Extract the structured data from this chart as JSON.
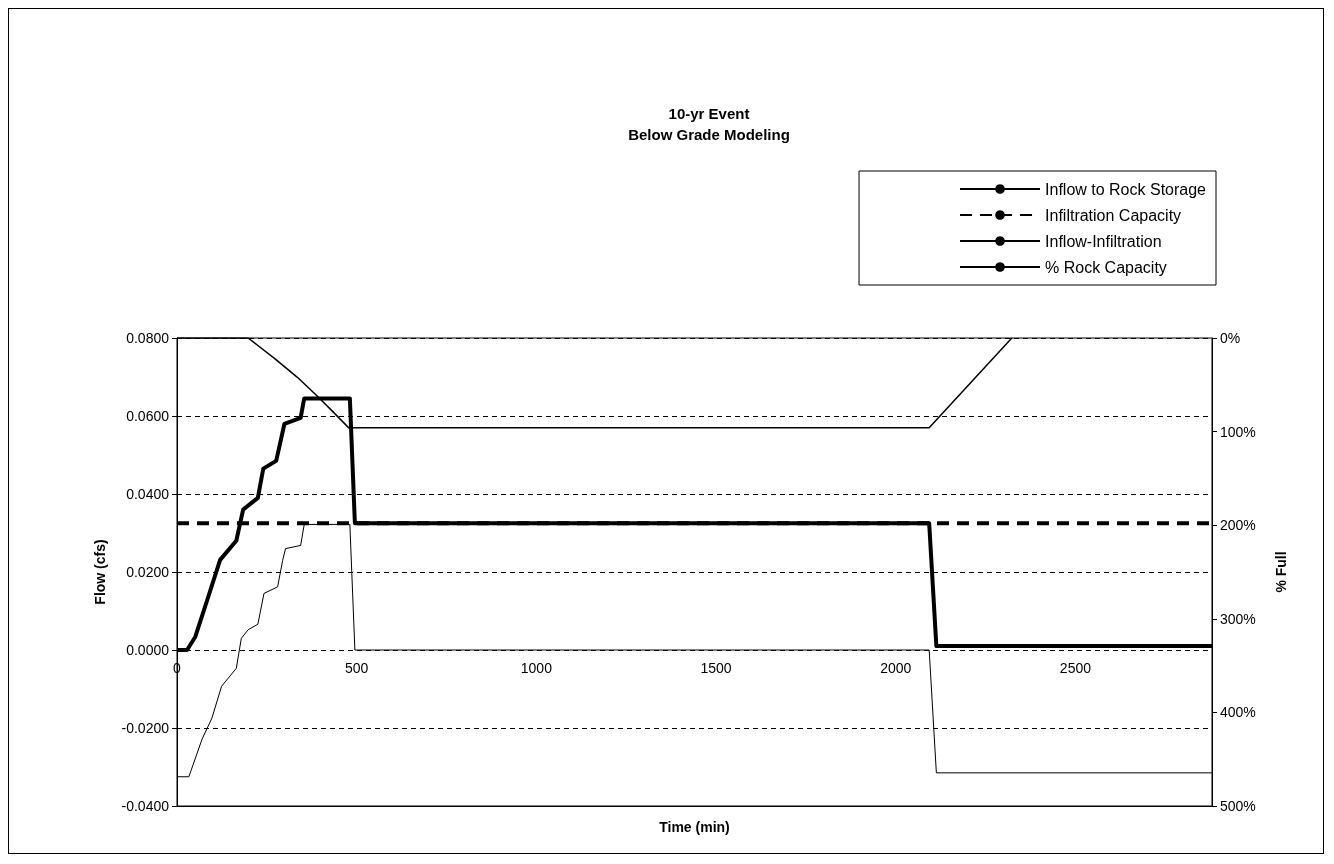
{
  "chart_data": {
    "type": "line",
    "title": "10-yr Event",
    "subtitle": "Below Grade Modeling",
    "xlabel": "Time (min)",
    "ylabel": "Flow (cfs)",
    "y2label": "% Full",
    "xlim": [
      0,
      2880
    ],
    "xticks": [
      0,
      500,
      1000,
      1500,
      2000,
      2500
    ],
    "ylim": [
      -0.04,
      0.08
    ],
    "yticks": [
      {
        "value": -0.04,
        "label": "-0.0400"
      },
      {
        "value": -0.02,
        "label": "-0.0200"
      },
      {
        "value": 0,
        "label": "0.0000"
      },
      {
        "value": 0.02,
        "label": "0.0200"
      },
      {
        "value": 0.04,
        "label": "0.0400"
      },
      {
        "value": 0.06,
        "label": "0.0600"
      },
      {
        "value": 0.08,
        "label": "0.0800"
      }
    ],
    "y2lim": [
      500,
      0
    ],
    "y2ticks": [
      {
        "value": 0,
        "label": "0%"
      },
      {
        "value": 100,
        "label": "100%"
      },
      {
        "value": 200,
        "label": "200%"
      },
      {
        "value": 300,
        "label": "300%"
      },
      {
        "value": 400,
        "label": "400%"
      },
      {
        "value": 500,
        "label": "500%"
      }
    ],
    "grid": "y",
    "legend": "top right",
    "marker": "none",
    "series": [
      {
        "name": "Inflow to Rock Storage",
        "color": "#000000",
        "line_style": "solid",
        "x": [
          0,
          28,
          51,
          83,
          120,
          165,
          184,
          225,
          240,
          276,
          299,
          344,
          354,
          481,
          495,
          2093,
          2113,
          2880
        ],
        "values": [
          0,
          0,
          0.0034,
          0.0125,
          0.0231,
          0.028,
          0.036,
          0.039,
          0.0465,
          0.0485,
          0.058,
          0.0595,
          0.0645,
          0.0645,
          0.0325,
          0.0325,
          0.001,
          0.001
        ]
      },
      {
        "name": "Infiltration Capacity",
        "color": "#000000",
        "line_style": "dashed",
        "x": [
          0,
          2880
        ],
        "values": [
          0.0325,
          0.0325
        ]
      },
      {
        "name": "Inflow-Infiltration",
        "color": "#000000",
        "line_style": "solid",
        "x": [
          0,
          33,
          70,
          97,
          124,
          165,
          179,
          198,
          225,
          242,
          280,
          294,
          302,
          344,
          354,
          481,
          495,
          2093,
          2113,
          2880
        ],
        "values": [
          -0.0325,
          -0.0325,
          -0.0228,
          -0.0175,
          -0.0093,
          -0.0047,
          0.003,
          0.0052,
          0.0066,
          0.0145,
          0.0162,
          0.023,
          0.026,
          0.0268,
          0.0322,
          0.0322,
          0,
          0,
          -0.0315,
          -0.0315
        ]
      },
      {
        "name": "% Rock Capacity",
        "color": "#000000",
        "line_style": "solid",
        "axis": "y2",
        "x": [
          0,
          198,
          225,
          272,
          335,
          390,
          437,
          478,
          2093,
          2323
        ],
        "values": [
          0,
          0,
          8,
          22,
          42,
          62,
          80,
          96,
          96,
          0
        ]
      }
    ]
  }
}
